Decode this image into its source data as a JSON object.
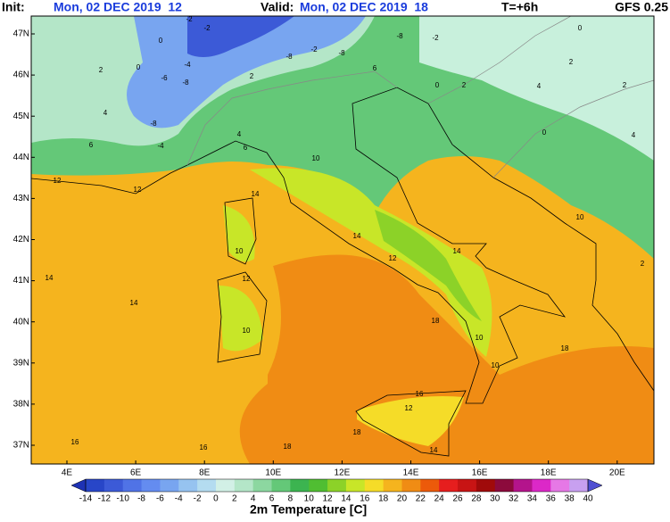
{
  "header": {
    "init_label": "Init:",
    "init_time": "Mon, 02 DEC 2019  12",
    "valid_label": "Valid:",
    "valid_time": "Mon, 02 DEC 2019  18",
    "lead": "T=+6h",
    "model": "GFS 0.25"
  },
  "lat_labels": [
    "47N",
    "46N",
    "45N",
    "44N",
    "43N",
    "42N",
    "41N",
    "40N",
    "39N",
    "38N",
    "37N"
  ],
  "lon_labels": [
    "4E",
    "6E",
    "8E",
    "10E",
    "12E",
    "14E",
    "16E",
    "18E",
    "20E"
  ],
  "colorbar": {
    "label": "2m Temperature [C]",
    "ticks": [
      -14,
      -12,
      -10,
      -8,
      -6,
      -4,
      -2,
      0,
      2,
      4,
      6,
      8,
      10,
      12,
      14,
      16,
      18,
      20,
      22,
      24,
      26,
      28,
      30,
      32,
      34,
      36,
      38,
      40
    ],
    "colors": [
      "#2846c8",
      "#3c5ad7",
      "#5073e6",
      "#648cf0",
      "#78a5f0",
      "#96c3f0",
      "#b4dcf0",
      "#d2f0e6",
      "#b4e6c8",
      "#8cd7a0",
      "#64c878",
      "#3cb450",
      "#50be32",
      "#8cd228",
      "#c8e628",
      "#f5dc28",
      "#f5b41e",
      "#f08c14",
      "#ec5a0a",
      "#e61e1e",
      "#c81414",
      "#a00a0a",
      "#8c0a3c",
      "#b4148c",
      "#dc28c8",
      "#e678e6",
      "#c8a0f0"
    ],
    "below_color": "#1e32b4",
    "above_color": "#5050d2"
  },
  "contour_labels": [
    -2,
    -2,
    0,
    2,
    0,
    -4,
    -6,
    -8,
    4,
    -8,
    6,
    -4,
    4,
    6,
    10,
    12,
    12,
    14,
    10,
    12,
    14,
    12,
    14,
    14,
    14,
    10,
    18,
    18,
    10,
    10,
    16,
    12,
    18,
    18,
    16,
    16,
    14,
    10,
    2,
    0,
    4,
    2,
    2,
    0,
    -8,
    -2,
    -8,
    -2,
    -8,
    6,
    2,
    0,
    2,
    4
  ]
}
